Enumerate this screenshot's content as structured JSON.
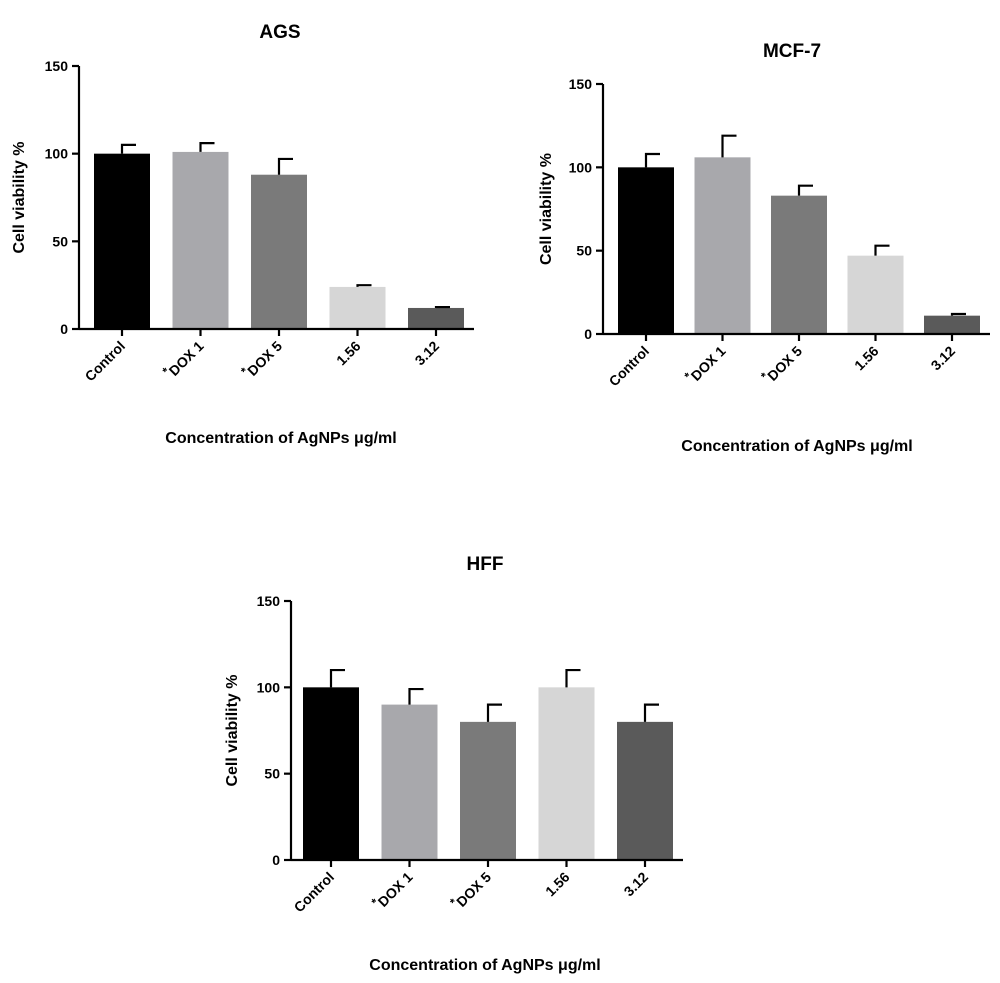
{
  "chart_data": [
    {
      "type": "bar",
      "title": "AGS",
      "xlabel": "Concentration of AgNPs μg/ml",
      "ylabel": "Cell viability %",
      "ylim": [
        0,
        150
      ],
      "yticks": [
        0,
        50,
        100,
        150
      ],
      "grid": false,
      "categories": [
        {
          "mark": "",
          "label": "Control"
        },
        {
          "mark": "*",
          "label": "DOX 1"
        },
        {
          "mark": "*",
          "label": "DOX 5"
        },
        {
          "mark": "",
          "label": "1.56"
        },
        {
          "mark": "",
          "label": "3.12"
        }
      ],
      "values": [
        100,
        101,
        88,
        24,
        12
      ],
      "errors": [
        5,
        5,
        9,
        1,
        0.5
      ],
      "colors": [
        "#000000",
        "#a8a8ac",
        "#7a7a7a",
        "#d6d6d6",
        "#5a5a5a"
      ]
    },
    {
      "type": "bar",
      "title": "MCF-7",
      "xlabel": "Concentration of AgNPs μg/ml",
      "ylabel": "Cell viability %",
      "ylim": [
        0,
        150
      ],
      "yticks": [
        0,
        50,
        100,
        150
      ],
      "grid": false,
      "categories": [
        {
          "mark": "",
          "label": "Control"
        },
        {
          "mark": "*",
          "label": "DOX 1"
        },
        {
          "mark": "*",
          "label": "DOX 5"
        },
        {
          "mark": "",
          "label": "1.56"
        },
        {
          "mark": "",
          "label": "3.12"
        }
      ],
      "values": [
        100,
        106,
        83,
        47,
        11
      ],
      "errors": [
        8,
        13,
        6,
        6,
        1
      ],
      "colors": [
        "#000000",
        "#a8a8ac",
        "#7a7a7a",
        "#d6d6d6",
        "#5a5a5a"
      ]
    },
    {
      "type": "bar",
      "title": "HFF",
      "xlabel": "Concentration of AgNPs μg/ml",
      "ylabel": "Cell viability %",
      "ylim": [
        0,
        150
      ],
      "yticks": [
        0,
        50,
        100,
        150
      ],
      "grid": false,
      "categories": [
        {
          "mark": "",
          "label": "Control"
        },
        {
          "mark": "*",
          "label": "DOX 1"
        },
        {
          "mark": "*",
          "label": "DOX 5"
        },
        {
          "mark": "",
          "label": "1.56"
        },
        {
          "mark": "",
          "label": "3.12"
        }
      ],
      "values": [
        100,
        90,
        80,
        100,
        80
      ],
      "errors": [
        10,
        9,
        10,
        10,
        10
      ],
      "colors": [
        "#000000",
        "#a8a8ac",
        "#7a7a7a",
        "#d6d6d6",
        "#5a5a5a"
      ]
    }
  ]
}
